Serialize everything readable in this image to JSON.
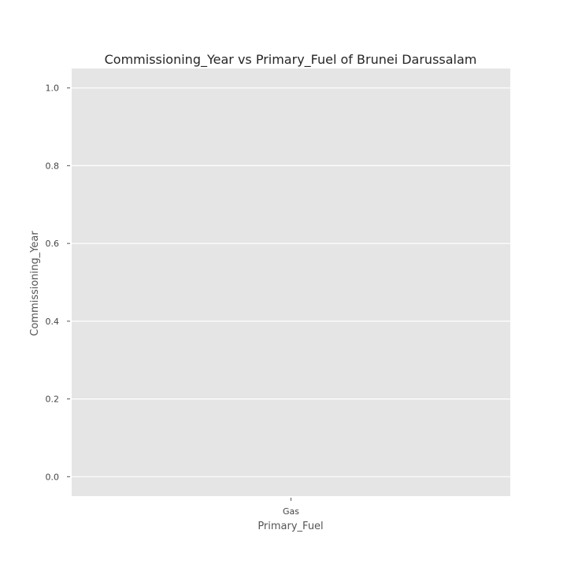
{
  "chart_data": {
    "type": "bar",
    "title": "Commissioning_Year vs  Primary_Fuel of Brunei Darussalam",
    "xlabel": "Primary_Fuel",
    "ylabel": "Commissioning_Year",
    "categories": [
      "Gas"
    ],
    "values": [
      0
    ],
    "ylim": [
      -0.05,
      1.05
    ],
    "yticks": [
      "0.0",
      "0.2",
      "0.4",
      "0.6",
      "0.8",
      "1.0"
    ],
    "grid": true,
    "legend": "none",
    "colors": {
      "background": "#ffffff",
      "plot_background": "#e5e5e5",
      "grid": "#ffffff",
      "text": "#444444"
    }
  }
}
